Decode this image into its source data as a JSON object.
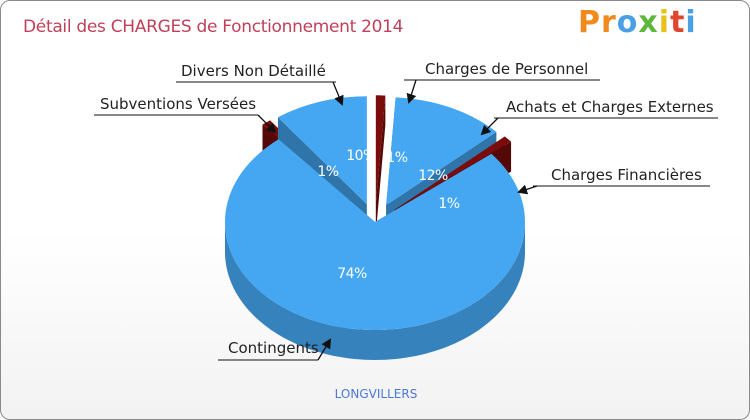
{
  "chart_data": {
    "type": "pie",
    "title": "Détail des CHARGES de Fonctionnement 2014",
    "caption": "LONGVILLERS",
    "slices": [
      {
        "label": "Charges de Personnel",
        "percent": 1,
        "value_label": "1%",
        "color": "#7a0c0c"
      },
      {
        "label": "Achats et Charges Externes",
        "percent": 12,
        "value_label": "12%",
        "color": "#45a7f2"
      },
      {
        "label": "Charges Financières",
        "percent": 1,
        "value_label": "1%",
        "color": "#7a0c0c"
      },
      {
        "label": "Contingents",
        "percent": 74,
        "value_label": "74%",
        "color": "#45a7f2"
      },
      {
        "label": "Subventions Versées",
        "percent": 1,
        "value_label": "1%",
        "color": "#7a0c0c"
      },
      {
        "label": "Divers Non Détaillé",
        "percent": 10,
        "value_label": "10%",
        "color": "#45a7f2"
      }
    ]
  },
  "logo": {
    "letters": [
      {
        "char": "P",
        "color": "#f08a1c"
      },
      {
        "char": "r",
        "color": "#f08a1c"
      },
      {
        "char": "o",
        "color": "#4aa0e6"
      },
      {
        "char": "x",
        "color": "#5bb83a"
      },
      {
        "char": "i",
        "color": "#e8c21a"
      },
      {
        "char": "t",
        "color": "#e0452e"
      },
      {
        "char": "i",
        "color": "#4aa0e6"
      }
    ]
  }
}
